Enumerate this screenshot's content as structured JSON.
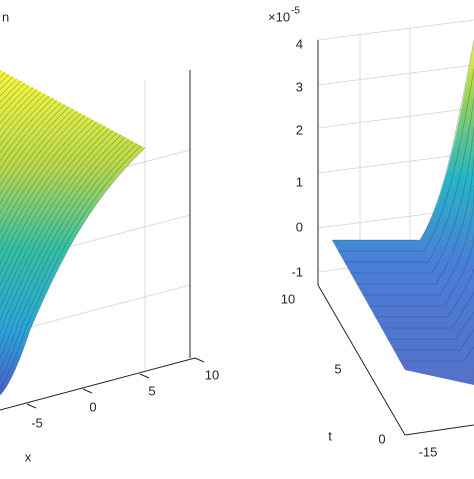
{
  "left_panel": {
    "title": "n",
    "x_label": "x",
    "x_ticks": [
      "-5",
      "0",
      "5",
      "10"
    ]
  },
  "right_panel": {
    "z_multiplier": "×10",
    "z_exponent": "-5",
    "z_ticks": [
      "4",
      "3",
      "2",
      "1",
      "0",
      "-1"
    ],
    "t_label": "t",
    "t_ticks": [
      "10",
      "5",
      "0"
    ],
    "x_ticks": [
      "-15"
    ]
  }
}
